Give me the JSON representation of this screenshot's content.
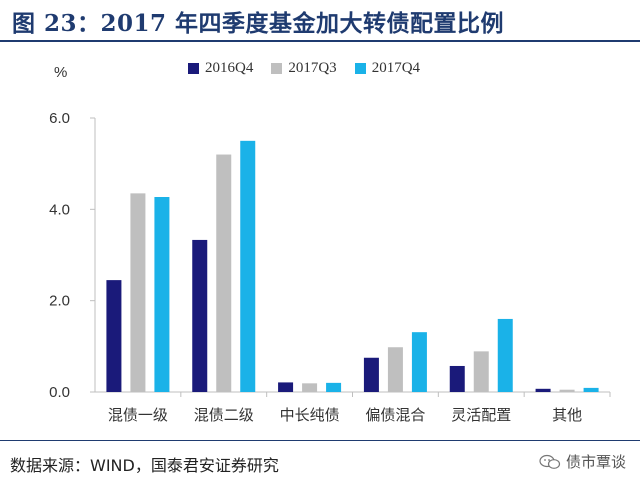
{
  "header": {
    "title": "图 23：2017 年四季度基金加大转债配置比例"
  },
  "footer": {
    "source": "数据来源：WIND，国泰君安证券研究",
    "watermark": "债市覃谈"
  },
  "colors": {
    "title": "#1f3b70",
    "series_2016Q4": "#1a1a7a",
    "series_2017Q3": "#bfbfbf",
    "series_2017Q4": "#1ab2e8"
  },
  "chart_data": {
    "type": "bar",
    "title": "",
    "xlabel": "",
    "ylabel": "%",
    "ylim": [
      0,
      6.0
    ],
    "yticks": [
      "0.0",
      "2.0",
      "4.0",
      "6.0"
    ],
    "ytick_values": [
      0,
      2,
      4,
      6
    ],
    "grid": false,
    "legend_position": "top",
    "categories": [
      "混债一级",
      "混债二级",
      "中长纯债",
      "偏债混合",
      "灵活配置",
      "其他"
    ],
    "series": [
      {
        "name": "2016Q4",
        "color": "#1a1a7a",
        "values": [
          2.45,
          3.33,
          0.21,
          0.75,
          0.57,
          0.07
        ]
      },
      {
        "name": "2017Q3",
        "color": "#bfbfbf",
        "values": [
          4.35,
          5.2,
          0.19,
          0.98,
          0.89,
          0.05
        ]
      },
      {
        "name": "2017Q4",
        "color": "#1ab2e8",
        "values": [
          4.27,
          5.5,
          0.2,
          1.31,
          1.6,
          0.09
        ]
      }
    ]
  }
}
